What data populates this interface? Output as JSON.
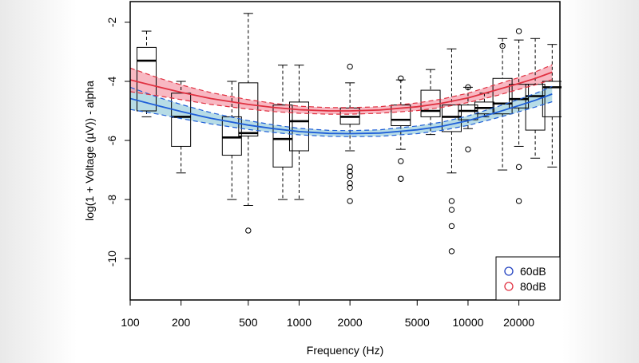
{
  "chart_data": {
    "type": "box",
    "xlabel": "Frequency (Hz)",
    "ylabel": "log(1 + Voltage (µV)) - alpha",
    "xscale": "log",
    "xlim": [
      100,
      35000
    ],
    "ylim": [
      -11.4,
      -1.3
    ],
    "xticks": [
      100,
      200,
      500,
      1000,
      2000,
      5000,
      10000,
      20000
    ],
    "xtick_labels": [
      "100",
      "200",
      "500",
      "1000",
      "2000",
      "5000",
      "10000",
      "20000"
    ],
    "yticks": [
      -2,
      -4,
      -6,
      -8,
      -10
    ],
    "ytick_labels": [
      "-2",
      "-4",
      "-6",
      "-8",
      "-10"
    ],
    "legend": {
      "position": "bottom-right",
      "entries": [
        {
          "label": "60dB",
          "color": "#1f3fbf"
        },
        {
          "label": "80dB",
          "color": "#e03040"
        }
      ]
    },
    "boxes": [
      {
        "freq": 125,
        "whisker_low": -5.2,
        "q1": -5.0,
        "median": -3.3,
        "q3": -2.85,
        "whisker_high": -2.3,
        "outliers": []
      },
      {
        "freq": 200,
        "whisker_low": -7.1,
        "q1": -6.2,
        "median": -5.2,
        "q3": -4.4,
        "whisker_high": -4.0,
        "outliers": []
      },
      {
        "freq": 400,
        "whisker_low": -8.0,
        "q1": -6.5,
        "median": -5.9,
        "q3": -5.2,
        "whisker_high": -4.0,
        "outliers": []
      },
      {
        "freq": 500,
        "whisker_low": -8.2,
        "q1": -5.85,
        "median": -5.75,
        "q3": -4.05,
        "whisker_high": -1.7,
        "outliers": [
          -9.05
        ]
      },
      {
        "freq": 800,
        "whisker_low": -8.0,
        "q1": -6.9,
        "median": -5.95,
        "q3": -4.8,
        "whisker_high": -3.45,
        "outliers": []
      },
      {
        "freq": 1000,
        "whisker_low": -8.0,
        "q1": -6.35,
        "median": -5.35,
        "q3": -4.7,
        "whisker_high": -3.45,
        "outliers": []
      },
      {
        "freq": 2000,
        "whisker_low": -6.35,
        "q1": -5.45,
        "median": -5.2,
        "q3": -4.9,
        "whisker_high": -4.05,
        "outliers": [
          -3.5,
          -6.9,
          -7.05,
          -7.2,
          -7.45,
          -7.6,
          -8.05
        ]
      },
      {
        "freq": 4000,
        "whisker_low": -6.3,
        "q1": -5.5,
        "median": -5.3,
        "q3": -4.8,
        "whisker_high": -3.95,
        "outliers": [
          -3.9,
          -6.7,
          -7.3,
          -7.3
        ]
      },
      {
        "freq": 6000,
        "whisker_low": -5.8,
        "q1": -5.2,
        "median": -5.0,
        "q3": -4.3,
        "whisker_high": -3.6,
        "outliers": []
      },
      {
        "freq": 8000,
        "whisker_low": -7.1,
        "q1": -5.7,
        "median": -5.2,
        "q3": -4.8,
        "whisker_high": -2.9,
        "outliers": [
          -8.05,
          -8.35,
          -8.9,
          -9.75
        ]
      },
      {
        "freq": 10000,
        "whisker_low": -5.6,
        "q1": -5.3,
        "median": -5.0,
        "q3": -4.8,
        "whisker_high": -4.2,
        "outliers": [
          -4.2,
          -6.3
        ]
      },
      {
        "freq": 12500,
        "whisker_low": -5.2,
        "q1": -5.1,
        "median": -4.9,
        "q3": -4.7,
        "whisker_high": -4.4,
        "outliers": []
      },
      {
        "freq": 16000,
        "whisker_low": -7.0,
        "q1": -5.1,
        "median": -4.75,
        "q3": -3.9,
        "whisker_high": -2.55,
        "outliers": [
          -2.8
        ]
      },
      {
        "freq": 20000,
        "whisker_low": -6.2,
        "q1": -4.9,
        "median": -4.6,
        "q3": -4.1,
        "whisker_high": -2.6,
        "outliers": [
          -2.3,
          -6.9,
          -8.05
        ]
      },
      {
        "freq": 25000,
        "whisker_low": -6.6,
        "q1": -5.65,
        "median": -4.5,
        "q3": -4.1,
        "whisker_high": -2.55,
        "outliers": []
      },
      {
        "freq": 31500,
        "whisker_low": -6.9,
        "q1": -5.2,
        "median": -4.2,
        "q3": -4.0,
        "whisker_high": -2.75,
        "outliers": []
      }
    ],
    "series": [
      {
        "color": "#1f5fd8",
        "band_color": "#9fd0dd",
        "x": [
          100,
          150,
          200,
          300,
          500,
          700,
          1000,
          1500,
          2000,
          3000,
          5000,
          7000,
          10000,
          15000,
          20000,
          25000,
          31500
        ],
        "y": [
          -4.58,
          -4.84,
          -5.02,
          -5.25,
          -5.48,
          -5.6,
          -5.7,
          -5.76,
          -5.77,
          -5.75,
          -5.64,
          -5.52,
          -5.33,
          -5.04,
          -4.82,
          -4.64,
          -4.43
        ],
        "ci_low": [
          -4.95,
          -5.12,
          -5.26,
          -5.44,
          -5.63,
          -5.73,
          -5.81,
          -5.86,
          -5.87,
          -5.86,
          -5.77,
          -5.66,
          -5.49,
          -5.23,
          -5.03,
          -4.87,
          -4.69
        ],
        "ci_high": [
          -4.2,
          -4.56,
          -4.78,
          -5.06,
          -5.33,
          -5.47,
          -5.59,
          -5.66,
          -5.67,
          -5.64,
          -5.51,
          -5.38,
          -5.17,
          -4.85,
          -4.61,
          -4.41,
          -4.17
        ]
      },
      {
        "color": "#e03040",
        "band_color": "#f5a0ad",
        "x": [
          100,
          150,
          200,
          300,
          500,
          700,
          1000,
          1500,
          2000,
          3000,
          5000,
          7000,
          10000,
          15000,
          20000,
          25000,
          31500
        ],
        "y": [
          -3.95,
          -4.2,
          -4.37,
          -4.58,
          -4.78,
          -4.88,
          -4.96,
          -5.0,
          -5.0,
          -4.97,
          -4.86,
          -4.74,
          -4.56,
          -4.28,
          -4.07,
          -3.9,
          -3.69
        ],
        "ci_low": [
          -4.35,
          -4.5,
          -4.62,
          -4.78,
          -4.94,
          -5.02,
          -5.08,
          -5.11,
          -5.11,
          -5.08,
          -4.99,
          -4.88,
          -4.72,
          -4.47,
          -4.27,
          -4.12,
          -3.94
        ],
        "ci_high": [
          -3.55,
          -3.9,
          -4.12,
          -4.38,
          -4.62,
          -4.74,
          -4.84,
          -4.89,
          -4.89,
          -4.86,
          -4.73,
          -4.6,
          -4.4,
          -4.09,
          -3.87,
          -3.68,
          -3.44
        ]
      }
    ]
  }
}
